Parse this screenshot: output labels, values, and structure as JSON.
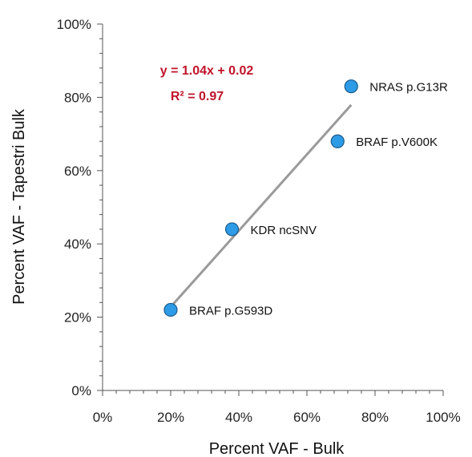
{
  "chart_data": {
    "type": "scatter",
    "xlabel": "Percent VAF - Bulk",
    "ylabel": "Percent VAF - Tapestri Bulk",
    "xlim": [
      0,
      1
    ],
    "ylim": [
      0,
      1
    ],
    "x_ticks": [
      "0%",
      "20%",
      "40%",
      "60%",
      "80%",
      "100%"
    ],
    "y_ticks": [
      "0%",
      "20%",
      "40%",
      "60%",
      "80%",
      "100%"
    ],
    "grid": false,
    "points": [
      {
        "label": "BRAF p.G593D",
        "x": 0.2,
        "y": 0.22
      },
      {
        "label": "KDR ncSNV",
        "x": 0.38,
        "y": 0.44
      },
      {
        "label": "BRAF p.V600K",
        "x": 0.69,
        "y": 0.68
      },
      {
        "label": "NRAS p.G13R",
        "x": 0.73,
        "y": 0.83
      }
    ],
    "trendline": {
      "slope": 1.04,
      "intercept": 0.02,
      "x_range": [
        0.2,
        0.73
      ]
    },
    "annotations": {
      "equation": "y = 1.04x + 0.02",
      "r_squared": "R² = 0.97"
    },
    "colors": {
      "marker_fill": "#2e9be6",
      "marker_stroke": "#1a5a8a",
      "trendline": "#9a9a9a",
      "equation": "#c0142a"
    }
  }
}
